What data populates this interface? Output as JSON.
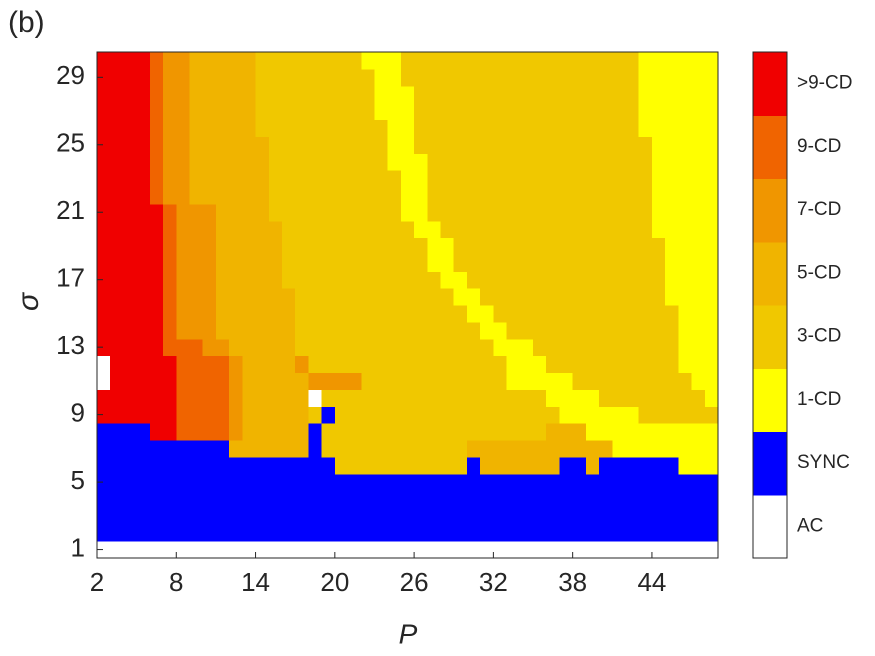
{
  "chart_data": {
    "type": "heatmap",
    "panel_label": "(b)",
    "x_label": "P",
    "y_label": "σ",
    "x": [
      2,
      3,
      4,
      5,
      6,
      7,
      8,
      9,
      10,
      11,
      12,
      13,
      14,
      15,
      16,
      17,
      18,
      19,
      20,
      21,
      22,
      23,
      24,
      25,
      26,
      27,
      28,
      29,
      30,
      31,
      32,
      33,
      34,
      35,
      36,
      37,
      38,
      39,
      40,
      41,
      42,
      43,
      44,
      45,
      46,
      47,
      48
    ],
    "y": [
      1,
      2,
      3,
      4,
      5,
      6,
      7,
      8,
      9,
      10,
      11,
      12,
      13,
      14,
      15,
      16,
      17,
      18,
      19,
      20,
      21,
      22,
      23,
      24,
      25,
      26,
      27,
      28,
      29,
      30
    ],
    "xlim": [
      2,
      49
    ],
    "ylim": [
      0.5,
      30.5
    ],
    "xticks": [
      2,
      8,
      14,
      20,
      26,
      32,
      38,
      44
    ],
    "yticks": [
      1,
      5,
      9,
      13,
      17,
      21,
      25,
      29
    ],
    "colorbar": {
      "labels": [
        "AC",
        "SYNC",
        "1-CD",
        "3-CD",
        "5-CD",
        "7-CD",
        "9-CD",
        ">9-CD"
      ],
      "colors": [
        "#ffffff",
        "#0000ff",
        "#ffff00",
        "#f0c800",
        "#f0b400",
        "#f09600",
        "#f06400",
        "#f00000"
      ]
    },
    "z": [
      [
        0,
        0,
        0,
        0,
        0,
        0,
        0,
        0,
        0,
        0,
        0,
        0,
        0,
        0,
        0,
        0,
        0,
        0,
        0,
        0,
        0,
        0,
        0,
        0,
        0,
        0,
        0,
        0,
        0,
        0,
        0,
        0,
        0,
        0,
        0,
        0,
        0,
        0,
        0,
        0,
        0,
        0,
        0,
        0,
        0,
        0,
        0
      ],
      [
        1,
        1,
        1,
        1,
        1,
        1,
        1,
        1,
        1,
        1,
        1,
        1,
        1,
        1,
        1,
        1,
        1,
        1,
        1,
        1,
        1,
        1,
        1,
        1,
        1,
        1,
        1,
        1,
        1,
        1,
        1,
        1,
        1,
        1,
        1,
        1,
        1,
        1,
        1,
        1,
        1,
        1,
        1,
        1,
        1,
        1,
        1
      ],
      [
        1,
        1,
        1,
        1,
        1,
        1,
        1,
        1,
        1,
        1,
        1,
        1,
        1,
        1,
        1,
        1,
        1,
        1,
        1,
        1,
        1,
        1,
        1,
        1,
        1,
        1,
        1,
        1,
        1,
        1,
        1,
        1,
        1,
        1,
        1,
        1,
        1,
        1,
        1,
        1,
        1,
        1,
        1,
        1,
        1,
        1,
        1
      ],
      [
        1,
        1,
        1,
        1,
        1,
        1,
        1,
        1,
        1,
        1,
        1,
        1,
        1,
        1,
        1,
        1,
        1,
        1,
        1,
        1,
        1,
        1,
        1,
        1,
        1,
        1,
        1,
        1,
        1,
        1,
        1,
        1,
        1,
        1,
        1,
        1,
        1,
        1,
        1,
        1,
        1,
        1,
        1,
        1,
        1,
        1,
        1
      ],
      [
        1,
        1,
        1,
        1,
        1,
        1,
        1,
        1,
        1,
        1,
        1,
        1,
        1,
        1,
        1,
        1,
        1,
        1,
        1,
        1,
        1,
        1,
        1,
        1,
        1,
        1,
        1,
        1,
        1,
        1,
        1,
        1,
        1,
        1,
        1,
        1,
        1,
        1,
        1,
        1,
        1,
        1,
        1,
        1,
        1,
        1,
        1
      ],
      [
        1,
        1,
        1,
        1,
        1,
        1,
        1,
        1,
        1,
        1,
        1,
        1,
        1,
        1,
        1,
        1,
        1,
        1,
        3,
        3,
        3,
        3,
        3,
        3,
        3,
        3,
        3,
        3,
        1,
        4,
        4,
        4,
        4,
        4,
        4,
        1,
        1,
        4,
        1,
        1,
        1,
        1,
        1,
        1,
        2,
        2,
        2
      ],
      [
        1,
        1,
        1,
        1,
        1,
        1,
        1,
        1,
        1,
        1,
        4,
        4,
        4,
        4,
        4,
        4,
        1,
        3,
        3,
        3,
        3,
        3,
        3,
        3,
        3,
        3,
        3,
        3,
        4,
        4,
        4,
        4,
        4,
        4,
        4,
        4,
        4,
        4,
        4,
        2,
        2,
        2,
        2,
        2,
        2,
        2,
        2
      ],
      [
        1,
        1,
        1,
        1,
        7,
        7,
        6,
        6,
        6,
        6,
        5,
        4,
        4,
        4,
        4,
        4,
        1,
        3,
        3,
        3,
        3,
        3,
        3,
        3,
        3,
        3,
        3,
        3,
        3,
        3,
        3,
        3,
        3,
        3,
        4,
        4,
        4,
        2,
        2,
        2,
        2,
        2,
        2,
        2,
        2,
        2,
        2
      ],
      [
        7,
        7,
        7,
        7,
        7,
        7,
        6,
        6,
        6,
        6,
        5,
        4,
        4,
        4,
        4,
        4,
        3,
        1,
        3,
        3,
        3,
        3,
        3,
        3,
        3,
        3,
        3,
        3,
        3,
        3,
        3,
        3,
        3,
        3,
        3,
        2,
        2,
        2,
        2,
        2,
        2,
        3,
        3,
        3,
        3,
        3,
        3
      ],
      [
        7,
        7,
        7,
        7,
        7,
        7,
        6,
        6,
        6,
        6,
        5,
        4,
        4,
        4,
        4,
        4,
        0,
        3,
        3,
        3,
        3,
        3,
        3,
        3,
        3,
        3,
        3,
        3,
        3,
        3,
        3,
        3,
        3,
        3,
        2,
        2,
        2,
        2,
        3,
        3,
        3,
        3,
        3,
        3,
        3,
        3,
        2
      ],
      [
        0,
        7,
        7,
        7,
        7,
        7,
        6,
        6,
        6,
        6,
        5,
        4,
        4,
        4,
        4,
        4,
        5,
        5,
        5,
        5,
        3,
        3,
        3,
        3,
        3,
        3,
        3,
        3,
        3,
        3,
        3,
        2,
        2,
        2,
        2,
        2,
        3,
        3,
        3,
        3,
        3,
        3,
        3,
        3,
        3,
        2,
        2
      ],
      [
        0,
        7,
        7,
        7,
        7,
        7,
        6,
        6,
        6,
        6,
        5,
        4,
        4,
        4,
        4,
        5,
        3,
        3,
        3,
        3,
        3,
        3,
        3,
        3,
        3,
        3,
        3,
        3,
        3,
        3,
        3,
        2,
        2,
        2,
        3,
        3,
        3,
        3,
        3,
        3,
        3,
        3,
        3,
        3,
        2,
        2,
        2
      ],
      [
        7,
        7,
        7,
        7,
        7,
        6,
        6,
        6,
        5,
        5,
        4,
        4,
        4,
        4,
        4,
        3,
        3,
        3,
        3,
        3,
        3,
        3,
        3,
        3,
        3,
        3,
        3,
        3,
        3,
        3,
        2,
        2,
        2,
        3,
        3,
        3,
        3,
        3,
        3,
        3,
        3,
        3,
        3,
        3,
        2,
        2,
        2
      ],
      [
        7,
        7,
        7,
        7,
        7,
        6,
        5,
        5,
        5,
        4,
        4,
        4,
        4,
        4,
        4,
        3,
        3,
        3,
        3,
        3,
        3,
        3,
        3,
        3,
        3,
        3,
        3,
        3,
        3,
        2,
        2,
        3,
        3,
        3,
        3,
        3,
        3,
        3,
        3,
        3,
        3,
        3,
        3,
        3,
        2,
        2,
        2
      ],
      [
        7,
        7,
        7,
        7,
        7,
        6,
        5,
        5,
        5,
        4,
        4,
        4,
        4,
        4,
        4,
        3,
        3,
        3,
        3,
        3,
        3,
        3,
        3,
        3,
        3,
        3,
        3,
        3,
        2,
        2,
        3,
        3,
        3,
        3,
        3,
        3,
        3,
        3,
        3,
        3,
        3,
        3,
        3,
        3,
        2,
        2,
        2
      ],
      [
        7,
        7,
        7,
        7,
        7,
        6,
        5,
        5,
        5,
        4,
        4,
        4,
        4,
        4,
        4,
        3,
        3,
        3,
        3,
        3,
        3,
        3,
        3,
        3,
        3,
        3,
        3,
        2,
        2,
        3,
        3,
        3,
        3,
        3,
        3,
        3,
        3,
        3,
        3,
        3,
        3,
        3,
        3,
        2,
        2,
        2,
        2
      ],
      [
        7,
        7,
        7,
        7,
        7,
        6,
        5,
        5,
        5,
        4,
        4,
        4,
        4,
        4,
        3,
        3,
        3,
        3,
        3,
        3,
        3,
        3,
        3,
        3,
        3,
        3,
        2,
        2,
        3,
        3,
        3,
        3,
        3,
        3,
        3,
        3,
        3,
        3,
        3,
        3,
        3,
        3,
        3,
        2,
        2,
        2,
        2
      ],
      [
        7,
        7,
        7,
        7,
        7,
        6,
        5,
        5,
        5,
        4,
        4,
        4,
        4,
        4,
        3,
        3,
        3,
        3,
        3,
        3,
        3,
        3,
        3,
        3,
        3,
        2,
        2,
        3,
        3,
        3,
        3,
        3,
        3,
        3,
        3,
        3,
        3,
        3,
        3,
        3,
        3,
        3,
        3,
        2,
        2,
        2,
        2
      ],
      [
        7,
        7,
        7,
        7,
        7,
        6,
        5,
        5,
        5,
        4,
        4,
        4,
        4,
        4,
        3,
        3,
        3,
        3,
        3,
        3,
        3,
        3,
        3,
        3,
        3,
        2,
        2,
        3,
        3,
        3,
        3,
        3,
        3,
        3,
        3,
        3,
        3,
        3,
        3,
        3,
        3,
        3,
        3,
        2,
        2,
        2,
        2
      ],
      [
        7,
        7,
        7,
        7,
        7,
        6,
        5,
        5,
        5,
        4,
        4,
        4,
        4,
        4,
        3,
        3,
        3,
        3,
        3,
        3,
        3,
        3,
        3,
        3,
        2,
        2,
        3,
        3,
        3,
        3,
        3,
        3,
        3,
        3,
        3,
        3,
        3,
        3,
        3,
        3,
        3,
        3,
        2,
        2,
        2,
        2,
        2
      ],
      [
        7,
        7,
        7,
        7,
        7,
        6,
        5,
        5,
        5,
        4,
        4,
        4,
        4,
        3,
        3,
        3,
        3,
        3,
        3,
        3,
        3,
        3,
        3,
        2,
        2,
        3,
        3,
        3,
        3,
        3,
        3,
        3,
        3,
        3,
        3,
        3,
        3,
        3,
        3,
        3,
        3,
        3,
        2,
        2,
        2,
        2,
        2
      ],
      [
        7,
        7,
        7,
        7,
        6,
        5,
        5,
        4,
        4,
        4,
        4,
        4,
        4,
        3,
        3,
        3,
        3,
        3,
        3,
        3,
        3,
        3,
        3,
        2,
        2,
        3,
        3,
        3,
        3,
        3,
        3,
        3,
        3,
        3,
        3,
        3,
        3,
        3,
        3,
        3,
        3,
        3,
        2,
        2,
        2,
        2,
        2
      ],
      [
        7,
        7,
        7,
        7,
        6,
        5,
        5,
        4,
        4,
        4,
        4,
        4,
        4,
        3,
        3,
        3,
        3,
        3,
        3,
        3,
        3,
        3,
        3,
        2,
        2,
        3,
        3,
        3,
        3,
        3,
        3,
        3,
        3,
        3,
        3,
        3,
        3,
        3,
        3,
        3,
        3,
        3,
        2,
        2,
        2,
        2,
        2
      ],
      [
        7,
        7,
        7,
        7,
        6,
        5,
        5,
        4,
        4,
        4,
        4,
        4,
        4,
        3,
        3,
        3,
        3,
        3,
        3,
        3,
        3,
        3,
        2,
        2,
        2,
        3,
        3,
        3,
        3,
        3,
        3,
        3,
        3,
        3,
        3,
        3,
        3,
        3,
        3,
        3,
        3,
        3,
        2,
        2,
        2,
        2,
        2
      ],
      [
        7,
        7,
        7,
        7,
        6,
        5,
        5,
        4,
        4,
        4,
        4,
        4,
        4,
        3,
        3,
        3,
        3,
        3,
        3,
        3,
        3,
        3,
        2,
        2,
        3,
        3,
        3,
        3,
        3,
        3,
        3,
        3,
        3,
        3,
        3,
        3,
        3,
        3,
        3,
        3,
        3,
        3,
        2,
        2,
        2,
        2,
        2
      ],
      [
        7,
        7,
        7,
        7,
        6,
        5,
        5,
        4,
        4,
        4,
        4,
        4,
        3,
        3,
        3,
        3,
        3,
        3,
        3,
        3,
        3,
        3,
        2,
        2,
        3,
        3,
        3,
        3,
        3,
        3,
        3,
        3,
        3,
        3,
        3,
        3,
        3,
        3,
        3,
        3,
        3,
        2,
        2,
        2,
        2,
        2,
        2
      ],
      [
        7,
        7,
        7,
        7,
        6,
        5,
        5,
        4,
        4,
        4,
        4,
        4,
        3,
        3,
        3,
        3,
        3,
        3,
        3,
        3,
        3,
        2,
        2,
        2,
        3,
        3,
        3,
        3,
        3,
        3,
        3,
        3,
        3,
        3,
        3,
        3,
        3,
        3,
        3,
        3,
        3,
        2,
        2,
        2,
        2,
        2,
        2
      ],
      [
        7,
        7,
        7,
        7,
        6,
        5,
        5,
        4,
        4,
        4,
        4,
        4,
        3,
        3,
        3,
        3,
        3,
        3,
        3,
        3,
        3,
        2,
        2,
        2,
        3,
        3,
        3,
        3,
        3,
        3,
        3,
        3,
        3,
        3,
        3,
        3,
        3,
        3,
        3,
        3,
        3,
        2,
        2,
        2,
        2,
        2,
        2
      ],
      [
        7,
        7,
        7,
        7,
        6,
        5,
        5,
        4,
        4,
        4,
        4,
        4,
        3,
        3,
        3,
        3,
        3,
        3,
        3,
        3,
        3,
        2,
        2,
        3,
        3,
        3,
        3,
        3,
        3,
        3,
        3,
        3,
        3,
        3,
        3,
        3,
        3,
        3,
        3,
        3,
        3,
        2,
        2,
        2,
        2,
        2,
        2
      ],
      [
        7,
        7,
        7,
        7,
        6,
        5,
        5,
        4,
        4,
        4,
        4,
        4,
        3,
        3,
        3,
        3,
        3,
        3,
        3,
        3,
        2,
        2,
        2,
        3,
        3,
        3,
        3,
        3,
        3,
        3,
        3,
        3,
        3,
        3,
        3,
        3,
        3,
        3,
        3,
        3,
        3,
        2,
        2,
        2,
        2,
        2,
        2
      ]
    ]
  }
}
